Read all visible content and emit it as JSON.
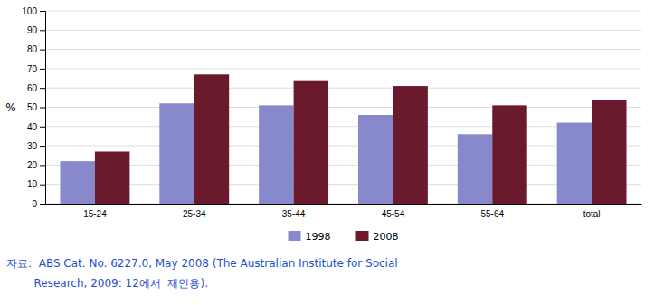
{
  "chart_data": {
    "type": "bar",
    "y_label": "%",
    "categories": [
      "15-24",
      "25-34",
      "35-44",
      "45-54",
      "55-64",
      "total"
    ],
    "series": [
      {
        "name": "1998",
        "color": "#8888cc",
        "values": [
          22,
          52,
          51,
          46,
          36,
          42
        ]
      },
      {
        "name": "2008",
        "color": "#6b1a2e",
        "values": [
          27,
          67,
          64,
          61,
          51,
          54
        ]
      }
    ],
    "ylim": [
      0,
      100
    ],
    "yticks": [
      0,
      10,
      20,
      30,
      40,
      50,
      60,
      70,
      80,
      90,
      100
    ],
    "grid": true,
    "legend": "bottom",
    "annotations": [
      {
        "text": "자료:  ABS Cat. No. 6227.0, May 2008 (The Australian Institute for Social",
        "color": "#1f4fd0"
      },
      {
        "text": "        Research, 2009: 12에서  재인용).",
        "color": "#1f4fd0"
      }
    ]
  }
}
